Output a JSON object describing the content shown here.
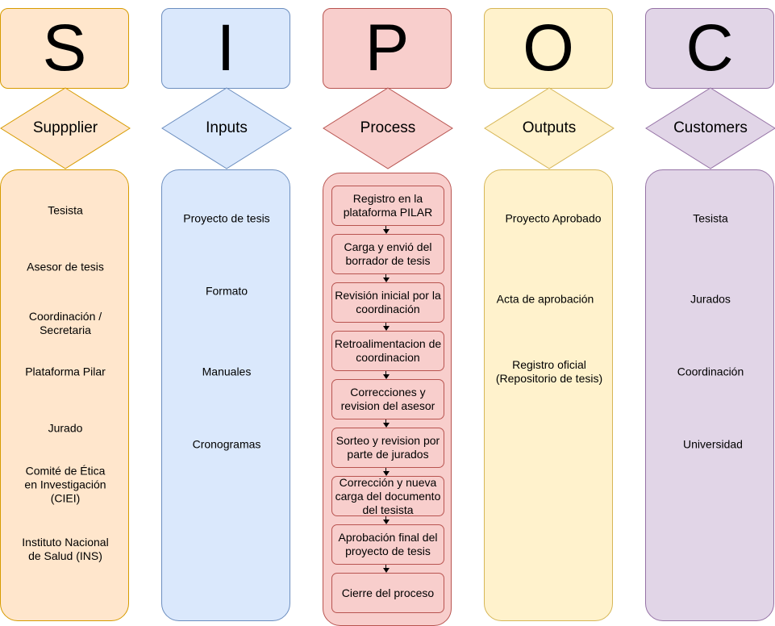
{
  "columns": [
    {
      "letter": "S",
      "title": "Suppplier",
      "items": [
        "Tesista",
        "Asesor de tesis",
        "Coordinación /\nSecretaria",
        "Plataforma Pilar",
        "Jurado",
        "Comité de Ética\nen Investigación\n(CIEI)",
        "Instituto Nacional\nde Salud (INS)"
      ],
      "colors": {
        "fill": "#ffe6cc",
        "stroke": "#d79b00"
      }
    },
    {
      "letter": "I",
      "title": "Inputs",
      "items": [
        "Proyecto de tesis",
        "Formato",
        "Manuales",
        "Cronogramas"
      ],
      "colors": {
        "fill": "#dae8fc",
        "stroke": "#6c8ebf"
      }
    },
    {
      "letter": "P",
      "title": "Process",
      "steps": [
        "Registro en la\nplataforma PILAR",
        "Carga y envió del\nborrador de tesis",
        "Revisión inicial por la\ncoordinación",
        "Retroalimentacion de\ncoordinacion",
        "Correcciones y\nrevision del asesor",
        "Sorteo y revision por\nparte de jurados",
        "Corrección y nueva\ncarga del documento\ndel tesista",
        "Aprobación final del\nproyecto de tesis",
        "Cierre del proceso"
      ],
      "colors": {
        "fill": "#f8cecc",
        "stroke": "#b85450"
      }
    },
    {
      "letter": "O",
      "title": "Outputs",
      "items": [
        "Proyecto Aprobado",
        "Acta de aprobación",
        "Registro oficial\n(Repositorio de tesis)"
      ],
      "colors": {
        "fill": "#fff2cc",
        "stroke": "#d6b656"
      }
    },
    {
      "letter": "C",
      "title": "Customers",
      "items": [
        "Tesista",
        "Jurados",
        "Coordinación",
        "Universidad"
      ],
      "colors": {
        "fill": "#e1d5e7",
        "stroke": "#9673a6"
      }
    }
  ]
}
